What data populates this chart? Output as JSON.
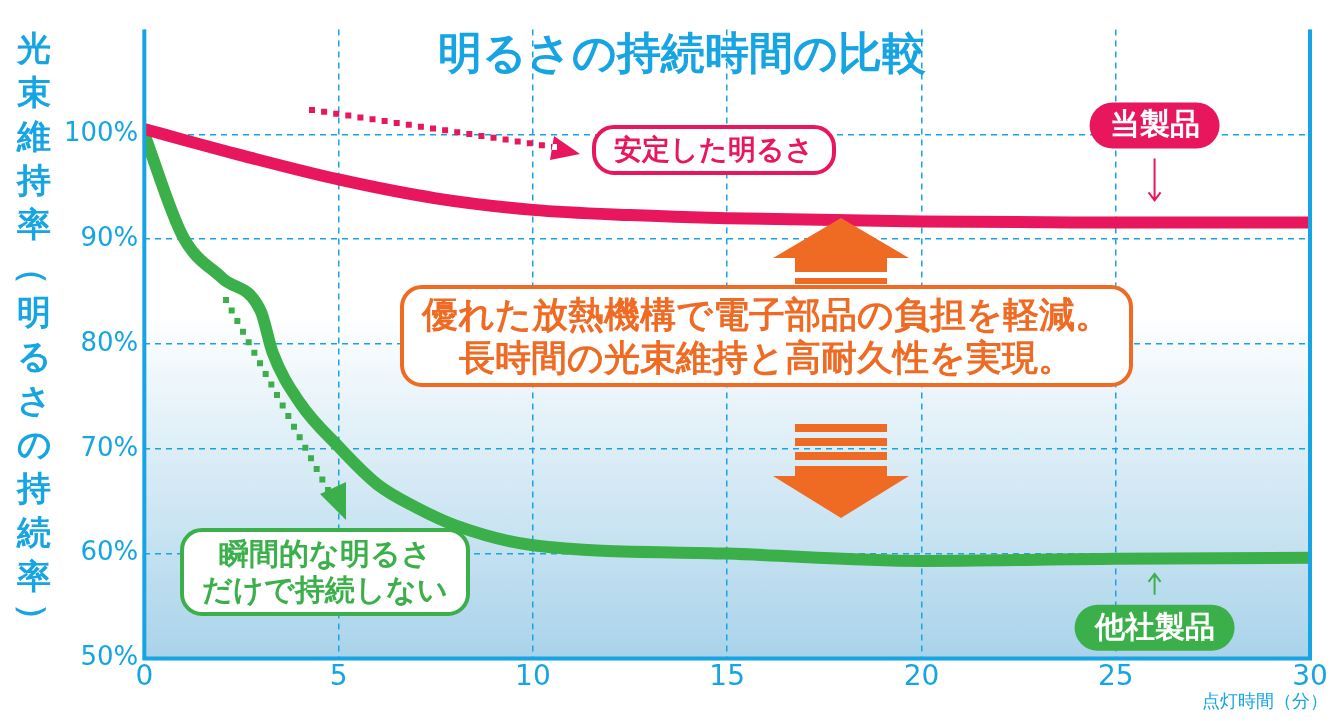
{
  "chart_data": {
    "type": "line",
    "title": "明るさの持続時間の比較",
    "ylabel": "光束維持率（明るさの持続率）",
    "xlabel": "点灯時間（分）",
    "xlim": [
      0,
      30
    ],
    "xticks": [
      0,
      5,
      10,
      15,
      20,
      25,
      30
    ],
    "ylim": [
      50,
      110
    ],
    "yticks": [
      {
        "value": 50,
        "label": "50%"
      },
      {
        "value": 60,
        "label": "60%"
      },
      {
        "value": 70,
        "label": "70%"
      },
      {
        "value": 80,
        "label": "80%"
      },
      {
        "value": 90,
        "label": "90%"
      },
      {
        "value": 100,
        "label": "100%"
      }
    ],
    "grid": true,
    "legend": "right",
    "marker": "none",
    "line_style": "solid",
    "series": [
      {
        "name": "当製品",
        "color": "#e8175d",
        "x": [
          0,
          2.5,
          5,
          7.5,
          10,
          12.5,
          15,
          20,
          25,
          30
        ],
        "values": [
          100.5,
          98,
          95.7,
          93.9,
          92.8,
          92.3,
          92,
          91.7,
          91.6,
          91.6
        ]
      },
      {
        "name": "他社製品",
        "color": "#3bb04a",
        "x": [
          0,
          1,
          2,
          3,
          3.3,
          4,
          5,
          6,
          7,
          8,
          10,
          15,
          20,
          25,
          30
        ],
        "values": [
          100,
          90.2,
          86.3,
          83.1,
          79.2,
          74.4,
          70.2,
          66.6,
          64.4,
          62.7,
          60.8,
          60,
          59.3,
          59.5,
          59.6
        ]
      }
    ],
    "annotations": [
      "安定した明るさ",
      "瞬間的な明るさ",
      "だけで持続しない",
      "優れた放熱機構で電子部品の負担を軽減。",
      "長時間の光束維持と高耐久性を実現。"
    ]
  }
}
